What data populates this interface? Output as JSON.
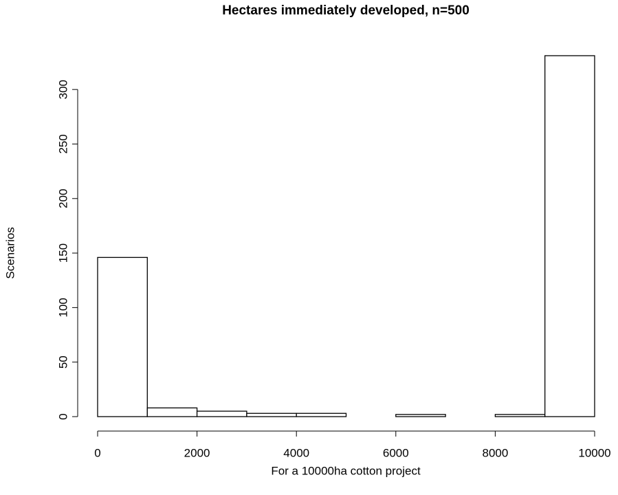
{
  "chart_data": {
    "type": "histogram",
    "title": "Hectares immediately developed, n=500",
    "x_label": "For a 10000ha cotton project",
    "y_label": "Scenarios",
    "bins": [
      0,
      1000,
      2000,
      3000,
      4000,
      5000,
      6000,
      7000,
      8000,
      9000,
      10000
    ],
    "counts": [
      146,
      8,
      5,
      3,
      3,
      0,
      2,
      0,
      2,
      331
    ],
    "color": "#ffffff",
    "edge_color": "#000000",
    "xlim": [
      0,
      10000
    ],
    "xticks": [
      0,
      2000,
      4000,
      6000,
      8000,
      10000
    ],
    "ylim": [
      0,
      331
    ],
    "yticks": [
      0,
      50,
      100,
      150,
      200,
      250,
      300
    ],
    "grid": false
  }
}
